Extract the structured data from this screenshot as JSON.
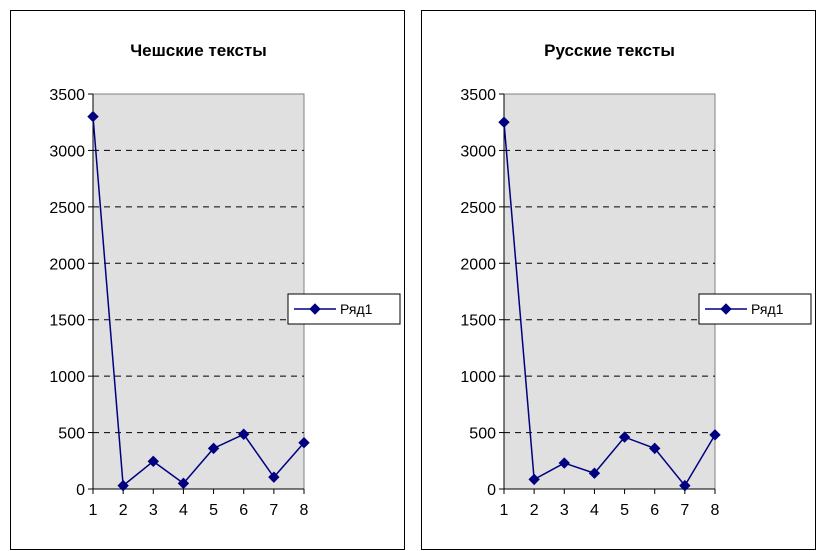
{
  "chart_data": [
    {
      "type": "line",
      "title": "Чешские тексты",
      "categories": [
        "1",
        "2",
        "3",
        "4",
        "5",
        "6",
        "7",
        "8"
      ],
      "series": [
        {
          "name": "Ряд1",
          "values": [
            3300,
            30,
            245,
            50,
            360,
            485,
            105,
            410
          ]
        }
      ],
      "ylim": [
        0,
        3500
      ],
      "yticks": [
        "0",
        "500",
        "1000",
        "1500",
        "2000",
        "2500",
        "3000",
        "3500"
      ],
      "grid": "horizontal-dashed",
      "legend": "right",
      "series_color": "#000080",
      "plot_background": "#e0e0e0"
    },
    {
      "type": "line",
      "title": "Русские тексты",
      "categories": [
        "1",
        "2",
        "3",
        "4",
        "5",
        "6",
        "7",
        "8"
      ],
      "series": [
        {
          "name": "Ряд1",
          "values": [
            3250,
            85,
            230,
            140,
            460,
            360,
            30,
            480
          ]
        }
      ],
      "ylim": [
        0,
        3500
      ],
      "yticks": [
        "0",
        "500",
        "1000",
        "1500",
        "2000",
        "2500",
        "3000",
        "3500"
      ],
      "grid": "horizontal-dashed",
      "legend": "right",
      "series_color": "#000080",
      "plot_background": "#e0e0e0"
    }
  ]
}
